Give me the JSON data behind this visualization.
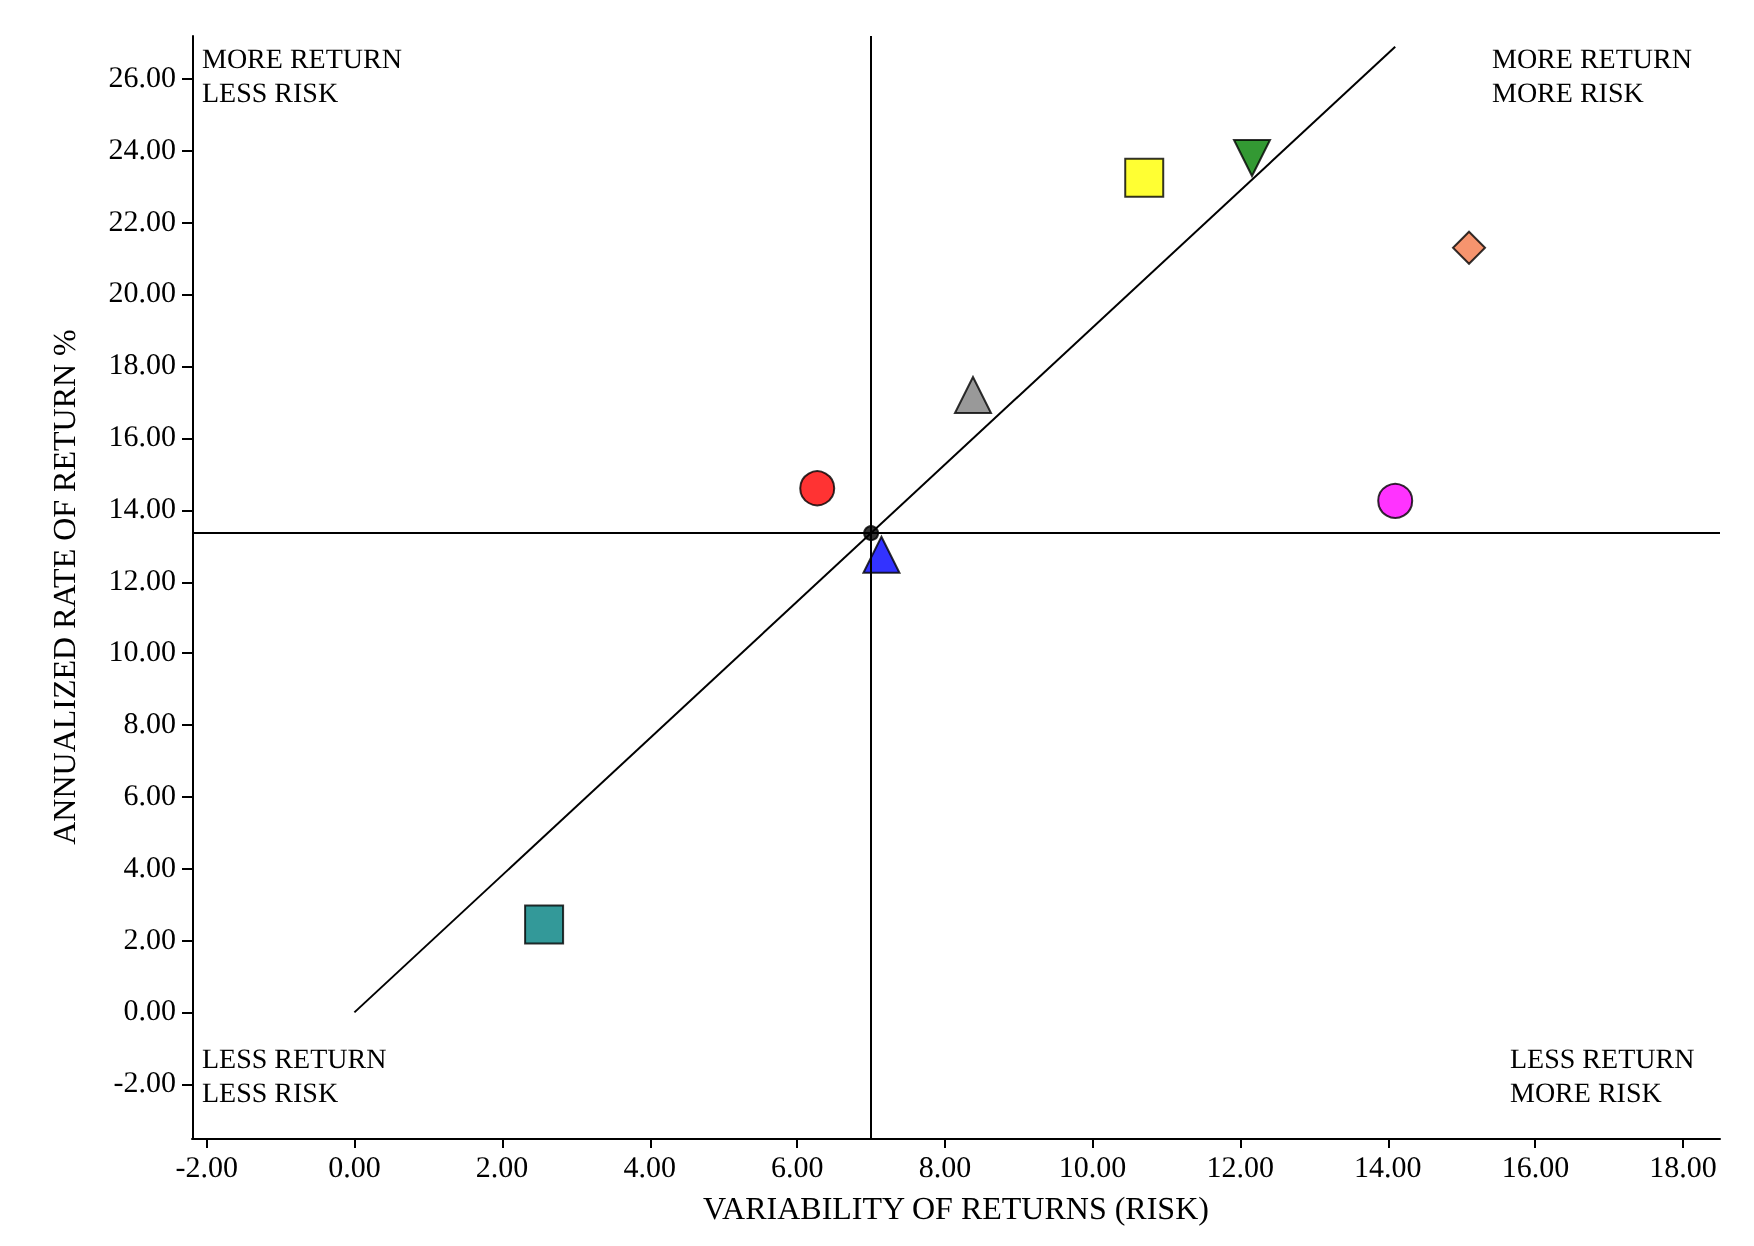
{
  "chart_data": {
    "type": "scatter",
    "xlabel": "VARIABILITY OF RETURNS (RISK)",
    "ylabel": "ANNUALIZED RATE OF RETURN %",
    "annotations": [
      "MORE RETURN\nLESS RISK",
      "MORE RETURN\nMORE RISK",
      "LESS RETURN\nLESS RISK",
      "LESS RETURN\nMORE RISK"
    ],
    "xlim": [
      -2.2,
      18.5
    ],
    "ylim": [
      -3.5,
      27.2
    ],
    "xticks": [
      {
        "value": -2,
        "label": "-2.00"
      },
      {
        "value": 0,
        "label": "0.00"
      },
      {
        "value": 2,
        "label": "2.00"
      },
      {
        "value": 4,
        "label": "4.00"
      },
      {
        "value": 6,
        "label": "6.00"
      },
      {
        "value": 8,
        "label": "8.00"
      },
      {
        "value": 10,
        "label": "10.00"
      },
      {
        "value": 12,
        "label": "12.00"
      },
      {
        "value": 14,
        "label": "14.00"
      },
      {
        "value": 16,
        "label": "16.00"
      },
      {
        "value": 18,
        "label": "18.00"
      }
    ],
    "yticks": [
      {
        "value": -2,
        "label": "-2.00"
      },
      {
        "value": 0,
        "label": "0.00"
      },
      {
        "value": 2,
        "label": "2.00"
      },
      {
        "value": 4,
        "label": "4.00"
      },
      {
        "value": 6,
        "label": "6.00"
      },
      {
        "value": 8,
        "label": "8.00"
      },
      {
        "value": 10,
        "label": "10.00"
      },
      {
        "value": 12,
        "label": "12.00"
      },
      {
        "value": 14,
        "label": "14.00"
      },
      {
        "value": 16,
        "label": "16.00"
      },
      {
        "value": 18,
        "label": "18.00"
      },
      {
        "value": 20,
        "label": "20.00"
      },
      {
        "value": 22,
        "label": "22.00"
      },
      {
        "value": 24,
        "label": "24.00"
      },
      {
        "value": 26,
        "label": "26.00"
      }
    ],
    "grid": false,
    "ref_lines": [
      {
        "axis": "x",
        "value": 7.0,
        "color": "#000000"
      },
      {
        "axis": "y",
        "value": 13.35,
        "color": "#000000"
      }
    ],
    "series": [
      {
        "type": "line",
        "color": "#000000",
        "marker": "none",
        "x": [
          0,
          14.1
        ],
        "values": [
          0,
          26.9
        ]
      },
      {
        "type": "scatter",
        "color": "#000000",
        "marker": "circle",
        "x": [
          7.0
        ],
        "values": [
          13.35
        ]
      },
      {
        "type": "scatter",
        "color": "#ff0000",
        "marker": "circle",
        "x": [
          6.27
        ],
        "values": [
          14.6
        ]
      },
      {
        "type": "scatter",
        "color": "#0000ff",
        "marker": "triangle",
        "x": [
          7.14
        ],
        "values": [
          12.75
        ]
      },
      {
        "type": "scatter",
        "color": "#808080",
        "marker": "triangle",
        "x": [
          8.38
        ],
        "values": [
          17.2
        ]
      },
      {
        "type": "scatter",
        "color": "#ffff00",
        "marker": "square",
        "x": [
          10.7
        ],
        "values": [
          23.25
        ]
      },
      {
        "type": "scatter",
        "color": "#008000",
        "marker": "triangle-down",
        "x": [
          12.16
        ],
        "values": [
          23.8
        ]
      },
      {
        "type": "scatter",
        "color": "#f4794a",
        "marker": "diamond",
        "x": [
          15.1
        ],
        "values": [
          21.3
        ]
      },
      {
        "type": "scatter",
        "color": "#ff00ff",
        "marker": "circle",
        "x": [
          14.1
        ],
        "values": [
          14.25
        ]
      },
      {
        "type": "scatter",
        "color": "#008080",
        "marker": "square",
        "x": [
          2.57
        ],
        "values": [
          2.45
        ]
      }
    ]
  }
}
